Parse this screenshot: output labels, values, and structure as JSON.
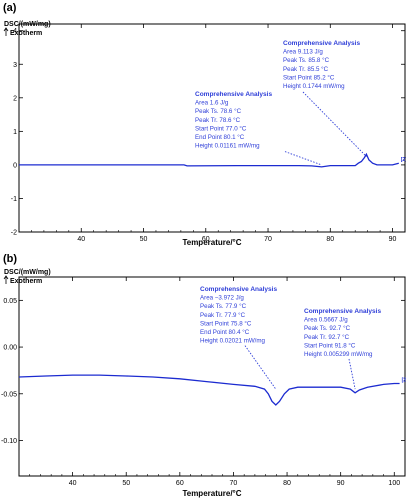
{
  "chart_data": [
    {
      "panel_label": "(a)",
      "type": "line",
      "ylabel": "DSC/(mW/mg)",
      "exotherm_label": "Exotherm",
      "xlabel": "Temperature/°C",
      "xlim": [
        30,
        92
      ],
      "ylim": [
        -2,
        4.2
      ],
      "xticks": [
        40,
        50,
        60,
        70,
        80,
        90
      ],
      "yticks": [
        -2,
        -1,
        0,
        1,
        2,
        3,
        4
      ],
      "series_tag": "[2]",
      "series": [
        {
          "color": "#1c2bd0",
          "points": [
            [
              30,
              0.0
            ],
            [
              40,
              0.0
            ],
            [
              56.5,
              0.0
            ],
            [
              57,
              -0.03
            ],
            [
              65,
              -0.02
            ],
            [
              75,
              -0.02
            ],
            [
              77,
              -0.03
            ],
            [
              78.6,
              -0.06
            ],
            [
              80,
              -0.02
            ],
            [
              84,
              -0.02
            ],
            [
              84.5,
              0.05
            ],
            [
              85,
              0.1
            ],
            [
              85.5,
              0.22
            ],
            [
              85.8,
              0.32
            ],
            [
              86.2,
              0.15
            ],
            [
              86.8,
              0.05
            ],
            [
              87.5,
              0.0
            ],
            [
              90,
              0.0
            ],
            [
              91,
              0.05
            ]
          ]
        }
      ],
      "annotations": [
        {
          "title": "Comprehensive Analysis",
          "lines": [
            "Area      1.6 J/g",
            "Peak      Ts. 78.6 °C",
            "Peak      Tr. 78.6 °C",
            "Start Point  77.0 °C",
            "End Point   80.1 °C",
            "Height     0.01161 mW/mg"
          ],
          "pointer": [
            78.6,
            0.0
          ]
        },
        {
          "title": "Comprehensive Analysis",
          "lines": [
            "Area      9.113 J/g",
            "Peak      Ts. 85.8 °C",
            "Peak      Tr. 85.5 °C",
            "Start Point  85.2 °C",
            "Height     0.1744 mW/mg"
          ],
          "pointer": [
            85.8,
            0.25
          ]
        }
      ]
    },
    {
      "panel_label": "(b)",
      "type": "line",
      "ylabel": "DSC/(mW/mg)",
      "exotherm_label": "Exotherm",
      "xlabel": "Temperature/°C",
      "xlim": [
        30,
        102
      ],
      "ylim": [
        -0.138,
        0.075
      ],
      "xticks": [
        40,
        50,
        60,
        70,
        80,
        90,
        100
      ],
      "yticks": [
        -0.1,
        -0.05,
        0.0,
        0.05
      ],
      "ytick_labels": [
        "-0.10",
        "-0.05",
        "0.00",
        "0.05"
      ],
      "series_tag": "[2]",
      "series": [
        {
          "color": "#1c2bd0",
          "points": [
            [
              30,
              -0.032
            ],
            [
              35,
              -0.031
            ],
            [
              40,
              -0.03
            ],
            [
              45,
              -0.03
            ],
            [
              50,
              -0.031
            ],
            [
              55,
              -0.032
            ],
            [
              60,
              -0.034
            ],
            [
              65,
              -0.037
            ],
            [
              70,
              -0.04
            ],
            [
              74,
              -0.042
            ],
            [
              75.8,
              -0.045
            ],
            [
              76.5,
              -0.05
            ],
            [
              77.2,
              -0.058
            ],
            [
              77.9,
              -0.062
            ],
            [
              78.6,
              -0.058
            ],
            [
              79.5,
              -0.05
            ],
            [
              80.4,
              -0.045
            ],
            [
              82,
              -0.043
            ],
            [
              86,
              -0.043
            ],
            [
              90,
              -0.043
            ],
            [
              91.8,
              -0.045
            ],
            [
              92.7,
              -0.049
            ],
            [
              93.5,
              -0.046
            ],
            [
              95,
              -0.043
            ],
            [
              98,
              -0.04
            ],
            [
              100,
              -0.039
            ],
            [
              101,
              -0.039
            ]
          ]
        }
      ],
      "annotations": [
        {
          "title": "Comprehensive Analysis",
          "lines": [
            "Area      −3.972 J/g",
            "Peak      Ts. 77.9 °C",
            "Peak      Tr. 77.9 °C",
            "Start Point  75.8 °C",
            "End Point   80.4 °C",
            "Height     0.02021 mW/mg"
          ],
          "pointer": [
            77.9,
            -0.045
          ]
        },
        {
          "title": "Comprehensive Analysis",
          "lines": [
            "Area      0.5667 J/g",
            "Peak      Ts. 92.7 °C",
            "Peak      Tr. 92.7 °C",
            "Start Point  91.8 °C",
            "Height     0.005299 mW/mg"
          ],
          "pointer": [
            92.7,
            -0.045
          ]
        }
      ]
    }
  ]
}
